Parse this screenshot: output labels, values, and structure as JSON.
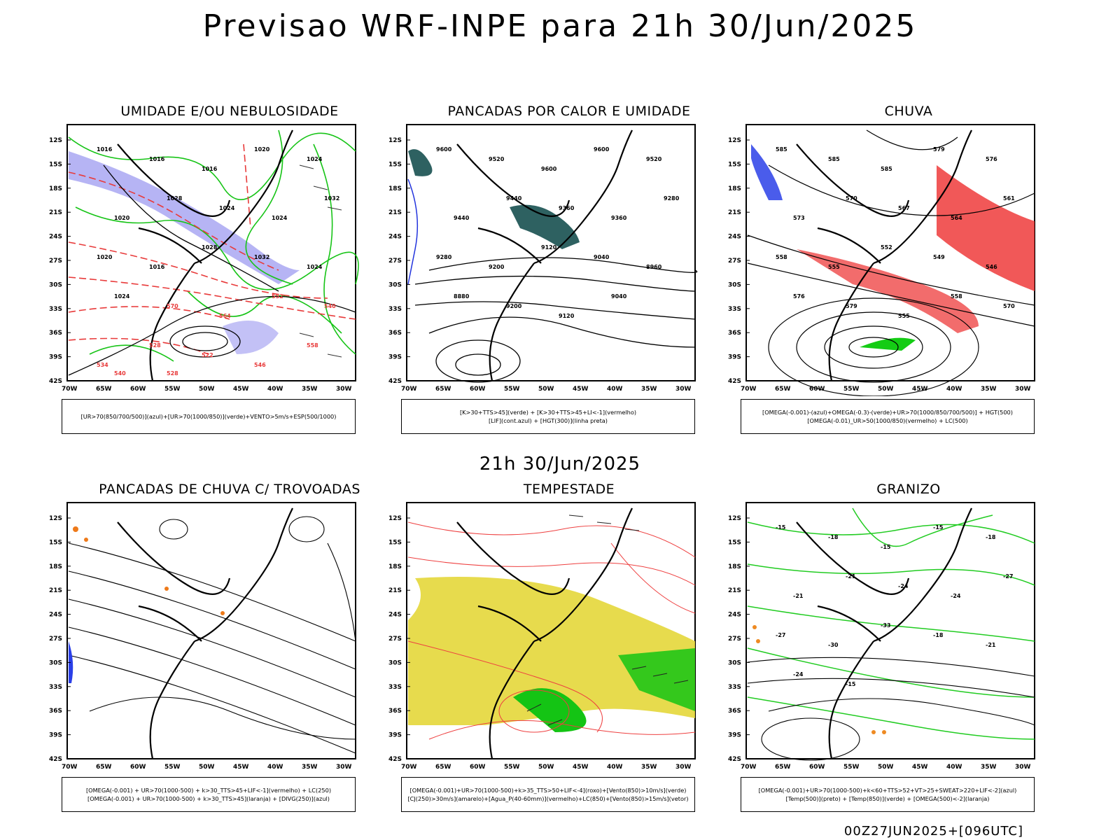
{
  "header": {
    "title": "Previsao WRF-INPE  para 21h 30/Jun/2025"
  },
  "subtitle": "21h 30/Jun/2025",
  "footer": "00Z27JUN2025+[096UTC]",
  "axes": {
    "lat": [
      "12S",
      "15S",
      "18S",
      "21S",
      "24S",
      "27S",
      "30S",
      "33S",
      "36S",
      "39S",
      "42S"
    ],
    "lon": [
      "70W",
      "65W",
      "60W",
      "55W",
      "50W",
      "45W",
      "40W",
      "35W",
      "30W"
    ]
  },
  "panels": [
    {
      "title": "UMIDADE E/OU NEBULOSIDADE",
      "legend": [
        "[UR>70(850/700/500)](azul)+[UR>70(1000/850)](verde)+VENTO>5m/s+ESP(500/1000)"
      ],
      "labels": [
        "1016",
        "1016",
        "1016",
        "1020",
        "1024",
        "1020",
        "1028",
        "1024",
        "1024",
        "1032",
        "1020",
        "1016",
        "1028",
        "1032",
        "1024",
        "1024",
        "570",
        "564",
        "552",
        "540",
        "534",
        "528",
        "522",
        "546",
        "558",
        "540",
        "528"
      ],
      "colors": {
        "blue": "#a9a7f2",
        "green": "#17c417",
        "red": "#e83a3a"
      }
    },
    {
      "title": "PANCADAS POR CALOR E UMIDADE",
      "legend": [
        "[K>30+TTS>45](verde) + [K>30+TTS>45+LI<-1](vermelho)",
        "[LIF](cont.azul) + [HGT(300)](linha preta)"
      ],
      "labels": [
        "9600",
        "9520",
        "9600",
        "9600",
        "9520",
        "9440",
        "9440",
        "9360",
        "9360",
        "9280",
        "9280",
        "9200",
        "9120",
        "9040",
        "8960",
        "8880",
        "9200",
        "9120",
        "9040"
      ],
      "colors": {
        "teal": "#2e6161",
        "blue": "#2233dd"
      }
    },
    {
      "title": "CHUVA",
      "legend": [
        "[OMEGA(-0.001)-(azul)+OMEGA(-0.3)-(verde)+UR>70(1000/850/700/500)] + HGT(500)",
        "[OMEGA(-0.01)_UR>50(1000/850)(vermelho) + LC(500)"
      ],
      "labels": [
        "585",
        "585",
        "585",
        "579",
        "576",
        "573",
        "570",
        "567",
        "564",
        "561",
        "558",
        "555",
        "552",
        "549",
        "546",
        "576",
        "579",
        "555",
        "558",
        "570"
      ],
      "colors": {
        "red": "#ee3b3b",
        "blue": "#2a3fe8",
        "green": "#14cc14"
      }
    },
    {
      "title": "PANCADAS DE CHUVA C/ TROVOADAS",
      "legend": [
        "[OMEGA(-0.001) + UR>70(1000-500) + k>30_TTS>45+LIF<-1](vermelho) + LC(250)",
        "[OMEGA(-0.001) + UR>70(1000-500) + k>30_TTS>45](laranja) + [DIVG(250)](azul)"
      ],
      "labels": [],
      "colors": {
        "orange": "#ee7a1a",
        "blue": "#2a3fe8"
      }
    },
    {
      "title": "TEMPESTADE",
      "legend": [
        "[OMEGA(-0.001)+UR>70(1000-500)+k>35_TTS>50+LIF<-4](roxo)+[Vento(850)>10m/s](verde)",
        "[CJ(250)>30m/s](amarelo)+[Agua_P(40-60mm)](vermelho)+LC(850)+[Vento(850)>15m/s](vetor)"
      ],
      "labels": [],
      "colors": {
        "yellow": "#e4d73a",
        "green": "#14c414",
        "red": "#ee4040"
      }
    },
    {
      "title": "GRANIZO",
      "legend": [
        "[OMEGA(-0.001)+UR>70(1000-500)+k<60+TTS>52+VT>25+SWEAT>220+LIF<-2](azul)",
        "[Temp(500)](preto) + [Temp(850)](verde) + [OMEGA(500)<-2](laranja)"
      ],
      "labels": [
        "-15",
        "-18",
        "-15",
        "-15",
        "-18",
        "-21",
        "-21",
        "-24",
        "-24",
        "-27",
        "-27",
        "-30",
        "-33",
        "-18",
        "-21",
        "-24",
        "-15"
      ],
      "colors": {
        "green": "#22cc22",
        "orange": "#ee8a22"
      }
    }
  ]
}
